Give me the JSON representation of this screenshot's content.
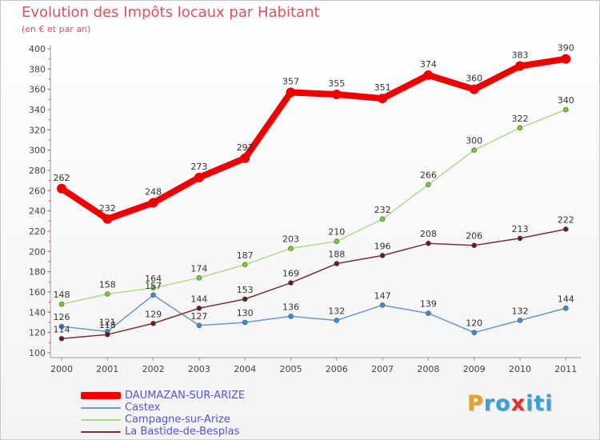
{
  "header": {
    "title": "Evolution des Impôts locaux par Habitant",
    "subtitle": "(en € et par an)"
  },
  "logo": {
    "letters": [
      "P",
      "r",
      "o",
      "x",
      "i",
      "t",
      "i"
    ],
    "colors": [
      "#e8a020",
      "#3aa0dc",
      "#3aa0dc",
      "#e03030",
      "#3aa0dc",
      "#3aa0dc",
      "#3aa0dc"
    ]
  },
  "chart_data": {
    "type": "line",
    "title": "Evolution des Impôts locaux par Habitant",
    "subtitle": "(en € et par an)",
    "xlabel": "",
    "ylabel": "",
    "x": [
      "2000",
      "2001",
      "2002",
      "2003",
      "2004",
      "2005",
      "2006",
      "2007",
      "2008",
      "2009",
      "2010",
      "2011"
    ],
    "ylim": [
      100,
      400
    ],
    "yticks": [
      100,
      120,
      140,
      160,
      180,
      200,
      220,
      240,
      260,
      280,
      300,
      320,
      340,
      360,
      380,
      400
    ],
    "grid": false,
    "legend_position": "bottom-left",
    "series": [
      {
        "name": "DAUMAZAN-SUR-ARIZE",
        "color": "#ee0000",
        "marker_color": "#ee0000",
        "style": "bold",
        "values": [
          262,
          232,
          248,
          273,
          292,
          357,
          355,
          351,
          374,
          360,
          383,
          390
        ],
        "labels": [
          "262",
          "232",
          "248",
          "273",
          "292",
          "357",
          "355",
          "351",
          "374",
          "360",
          "383",
          "390"
        ]
      },
      {
        "name": "Castex",
        "color": "#6699cc",
        "marker_color": "#3a8ad8",
        "style": "thin",
        "values": [
          126,
          121,
          157,
          127,
          130,
          136,
          132,
          147,
          139,
          120,
          132,
          144
        ],
        "labels": [
          "126",
          "121",
          "157",
          "127",
          "130",
          "136",
          "132",
          "147",
          "139",
          "120",
          "132",
          "144"
        ]
      },
      {
        "name": "Campagne-sur-Arize",
        "color": "#aadd88",
        "marker_color": "#77cc33",
        "style": "thin",
        "values": [
          148,
          158,
          164,
          174,
          187,
          203,
          210,
          232,
          266,
          300,
          322,
          340
        ],
        "labels": [
          "148",
          "158",
          "164",
          "174",
          "187",
          "203",
          "210",
          "232",
          "266",
          "300",
          "322",
          "340"
        ]
      },
      {
        "name": "La Bastide-de-Besplas",
        "color": "#7a3030",
        "marker_color": "#6a1a1a",
        "style": "thin",
        "values": [
          114,
          118,
          129,
          144,
          153,
          169,
          188,
          196,
          208,
          206,
          213,
          222
        ],
        "labels": [
          "114",
          "118",
          "129",
          "144",
          "153",
          "169",
          "188",
          "196",
          "208",
          "206",
          "213",
          "222"
        ]
      }
    ]
  }
}
